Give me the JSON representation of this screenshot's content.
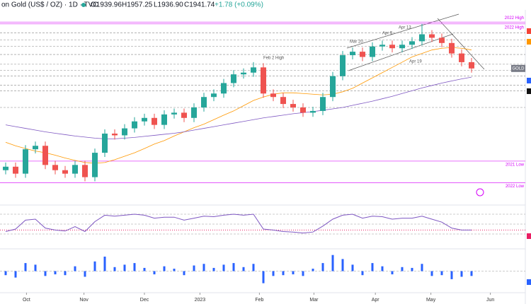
{
  "header": {
    "title": "on Gold (US$ / OZ) · 1D · TVC",
    "open": "O1939.96",
    "high": "H1957.25",
    "low": "L1936.90",
    "close": "C1941.74",
    "change": "+1.78 (+0.09%)"
  },
  "chart_data": [
    {
      "type": "candlestick",
      "symbol": "GOLD",
      "up_color": "#26a69a",
      "down_color": "#ef5350",
      "ylim": [
        1550,
        2110
      ],
      "open": [
        1650,
        1660,
        1640,
        1710,
        1720,
        1665,
        1650,
        1640,
        1665,
        1630,
        1700,
        1755,
        1750,
        1770,
        1790,
        1800,
        1780,
        1810,
        1815,
        1800,
        1830,
        1860,
        1870,
        1900,
        1925,
        1930,
        1945,
        1870,
        1860,
        1840,
        1830,
        1815,
        1820,
        1860,
        1920,
        1980,
        1990,
        1975,
        2005,
        2010,
        2000,
        2010,
        2020,
        2040,
        2030,
        2015,
        1985,
        1960
      ],
      "high": [
        1672,
        1672,
        1722,
        1732,
        1732,
        1677,
        1662,
        1677,
        1677,
        1712,
        1767,
        1767,
        1782,
        1802,
        1812,
        1812,
        1822,
        1827,
        1827,
        1842,
        1872,
        1882,
        1912,
        1937,
        1942,
        1960,
        1957,
        1882,
        1872,
        1852,
        1842,
        1832,
        1872,
        1932,
        1992,
        2002,
        2002,
        2017,
        2022,
        2022,
        2022,
        2032,
        2070,
        2052,
        2042,
        2027,
        1997,
        1972
      ],
      "low": [
        1638,
        1628,
        1628,
        1698,
        1653,
        1638,
        1628,
        1628,
        1618,
        1618,
        1688,
        1738,
        1738,
        1758,
        1778,
        1768,
        1768,
        1798,
        1788,
        1788,
        1818,
        1848,
        1858,
        1888,
        1913,
        1918,
        1858,
        1848,
        1828,
        1818,
        1803,
        1803,
        1808,
        1848,
        1908,
        1968,
        1963,
        1963,
        1993,
        1988,
        1988,
        1998,
        2008,
        2018,
        2003,
        1973,
        1948,
        1930
      ],
      "close": [
        1660,
        1640,
        1710,
        1720,
        1665,
        1650,
        1640,
        1665,
        1630,
        1700,
        1755,
        1750,
        1770,
        1790,
        1800,
        1780,
        1810,
        1815,
        1800,
        1830,
        1860,
        1870,
        1900,
        1925,
        1930,
        1945,
        1870,
        1860,
        1840,
        1830,
        1815,
        1820,
        1860,
        1920,
        1980,
        1990,
        1975,
        2005,
        2010,
        2000,
        2010,
        2020,
        2040,
        2030,
        2015,
        1985,
        1960,
        1942
      ],
      "series": [
        {
          "color": "#ff9800",
          "values": [
            1730,
            1720,
            1712,
            1705,
            1700,
            1693,
            1685,
            1678,
            1672,
            1670,
            1672,
            1680,
            1690,
            1700,
            1712,
            1725,
            1735,
            1748,
            1760,
            1772,
            1782,
            1795,
            1808,
            1820,
            1835,
            1850,
            1860,
            1868,
            1872,
            1872,
            1870,
            1868,
            1866,
            1868,
            1875,
            1885,
            1900,
            1915,
            1930,
            1945,
            1960,
            1975,
            1985,
            1995,
            2000,
            2002,
            2000,
            1995
          ]
        },
        {
          "color": "#7e57c2",
          "values": [
            1780,
            1775,
            1770,
            1765,
            1760,
            1756,
            1752,
            1748,
            1745,
            1742,
            1740,
            1740,
            1742,
            1744,
            1747,
            1750,
            1753,
            1756,
            1760,
            1765,
            1770,
            1775,
            1780,
            1785,
            1790,
            1795,
            1800,
            1804,
            1808,
            1812,
            1815,
            1818,
            1822,
            1826,
            1830,
            1836,
            1842,
            1848,
            1855,
            1862,
            1870,
            1878,
            1886,
            1893,
            1900,
            1906,
            1912,
            1917
          ]
        }
      ],
      "levels": [
        {
          "value": 2075,
          "label": "2022 High"
        },
        {
          "value": 2070,
          "label": "2022 High"
        },
        {
          "value": 1676,
          "label": "2021 Low"
        },
        {
          "value": 1614,
          "label": "2022 Low"
        }
      ],
      "dashed_levels": [
        2044,
        2024,
        2006,
        1982,
        1954,
        1936,
        1920,
        1894,
        1878,
        1830
      ],
      "annotations": [
        "Feb 2 High",
        "Mar 20",
        "Apr 5",
        "Apr 13",
        "Apr 19"
      ],
      "xticks": [
        {
          "value": 2.1,
          "label": "Oct"
        },
        {
          "value": 7.9,
          "label": "Nov"
        },
        {
          "value": 14,
          "label": "Dec"
        },
        {
          "value": 19.6,
          "label": "2023"
        },
        {
          "value": 25.6,
          "label": "Feb"
        },
        {
          "value": 31.1,
          "label": "Mar"
        },
        {
          "value": 37.3,
          "label": "Apr"
        },
        {
          "value": 42.9,
          "label": "May"
        },
        {
          "value": 48.9,
          "label": "Jun"
        }
      ]
    },
    {
      "type": "line",
      "color": "#7e57c2",
      "ylim": [
        0,
        100
      ],
      "levels": [
        70,
        50,
        30
      ],
      "values": [
        35,
        40,
        58,
        60,
        42,
        38,
        36,
        45,
        35,
        55,
        68,
        66,
        68,
        70,
        68,
        62,
        64,
        64,
        58,
        62,
        66,
        65,
        68,
        70,
        68,
        70,
        40,
        38,
        35,
        34,
        32,
        34,
        46,
        60,
        68,
        70,
        62,
        66,
        65,
        60,
        62,
        62,
        66,
        60,
        54,
        42,
        38,
        38
      ]
    },
    {
      "type": "bar",
      "color": "#2962ff",
      "ylim": [
        -25,
        25
      ],
      "values": [
        -5,
        -8,
        10,
        8,
        -6,
        -4,
        -5,
        6,
        -7,
        12,
        18,
        5,
        8,
        10,
        4,
        -4,
        6,
        3,
        -5,
        7,
        9,
        4,
        8,
        10,
        5,
        9,
        -15,
        -6,
        -5,
        -4,
        -6,
        3,
        10,
        20,
        15,
        8,
        -5,
        10,
        6,
        -4,
        5,
        4,
        9,
        -6,
        -5,
        -10,
        -7,
        -6
      ]
    }
  ]
}
